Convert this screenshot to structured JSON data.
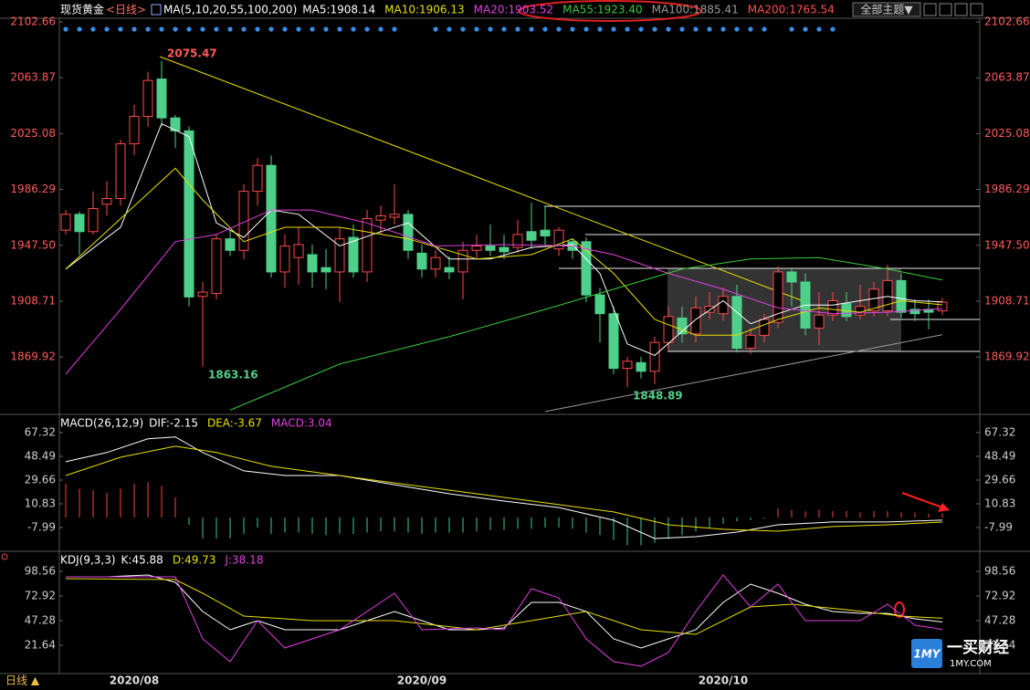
{
  "header": {
    "symbol": "现货黄金",
    "period": "<日线>",
    "theme": "全部主题▼"
  },
  "footer": {
    "period": "日线 ▲",
    "logo": "1MY",
    "brand": "一买财经",
    "brand_url": "1MY.COM"
  },
  "chart_data": [
    {
      "type": "candlestick",
      "title": "MA(5,10,20,55,100,200)",
      "categories": [
        null,
        null,
        null,
        null,
        null,
        "2020/08",
        null,
        null,
        null,
        null,
        null,
        null,
        null,
        null,
        null,
        null,
        null,
        null,
        null,
        null,
        null,
        null,
        null,
        null,
        null,
        null,
        "2020/09",
        null,
        null,
        null,
        null,
        null,
        null,
        null,
        null,
        null,
        null,
        null,
        null,
        null,
        null,
        null,
        null,
        null,
        null,
        null,
        null,
        null,
        "2020/10",
        null,
        null,
        null,
        null,
        null,
        null,
        null,
        null,
        null,
        null,
        null,
        null,
        null,
        null,
        null,
        null
      ],
      "open": [
        1958,
        1969,
        1957,
        1976,
        1980,
        2018,
        2037,
        2063,
        2036,
        2027,
        1912,
        1914,
        1952,
        1944,
        1985,
        2003,
        1929,
        1939,
        1941,
        1932,
        1929,
        1953,
        1929,
        1965,
        1967,
        1969,
        1942,
        1931,
        1932,
        1929,
        1944,
        1947,
        1946,
        1946,
        1957,
        1958,
        1945,
        1950,
        1950,
        1913,
        1900,
        1862,
        1866,
        1860,
        1880,
        1897,
        1886,
        1901,
        1900,
        1912,
        1876,
        1885,
        1894,
        1929,
        1922,
        1890,
        1899,
        1907,
        1899,
        1902,
        1902,
        1923,
        1903,
        1903,
        1902
      ],
      "high": [
        1972,
        1971,
        1985,
        1992,
        2021,
        2045,
        2068,
        2075.47,
        2038,
        2030,
        1922,
        1955,
        1958,
        1990,
        2008,
        2010,
        1955,
        1960,
        1948,
        1945,
        1960,
        1962,
        1972,
        1975,
        1990,
        1972,
        1948,
        1944,
        1940,
        1950,
        1955,
        1962,
        1955,
        1965,
        1977,
        1975,
        1960,
        1952,
        1953,
        1918,
        1905,
        1870,
        1870,
        1884,
        1905,
        1905,
        1912,
        1915,
        1918,
        1920,
        1890,
        1900,
        1933,
        1932,
        1928,
        1915,
        1915,
        1915,
        1920,
        1922,
        1934,
        1928,
        1910,
        1910,
        1911
      ],
      "low": [
        1955,
        1941,
        1955,
        1968,
        1975,
        2010,
        2030,
        2030,
        2015,
        1905,
        1863.16,
        1910,
        1940,
        1938,
        1975,
        1925,
        1918,
        1920,
        1918,
        1917,
        1908,
        1925,
        1922,
        1955,
        1962,
        1938,
        1925,
        1925,
        1924,
        1910,
        1938,
        1940,
        1938,
        1942,
        1945,
        1948,
        1940,
        1938,
        1908,
        1880,
        1858,
        1848.89,
        1855,
        1851,
        1875,
        1880,
        1880,
        1896,
        1895,
        1873,
        1872,
        1880,
        1890,
        1905,
        1885,
        1878,
        1895,
        1895,
        1896,
        1898,
        1898,
        1897,
        1895,
        1889,
        1899
      ],
      "close": [
        1969,
        1957,
        1973,
        1980,
        2018,
        2037,
        2062,
        2036,
        2027,
        1911.6,
        1915,
        1952,
        1944,
        1985,
        2003,
        1929,
        1947,
        1948,
        1929,
        1929,
        1952,
        1929,
        1966,
        1968,
        1969,
        1944,
        1931,
        1939,
        1929,
        1944,
        1947,
        1944,
        1943,
        1955,
        1951,
        1954,
        1958,
        1944,
        1913,
        1900,
        1862,
        1867,
        1860,
        1880,
        1898,
        1886,
        1904,
        1905,
        1912,
        1876,
        1885,
        1896,
        1929,
        1922,
        1890,
        1899,
        1909,
        1898,
        1905,
        1917,
        1923,
        1901,
        1900,
        1901,
        1908
      ],
      "up_color": "#ff4a4a",
      "down_color": "#4fd08a",
      "series": [
        {
          "name": "MA5:1908.14",
          "color": "#ffffff",
          "x": [
            0,
            4,
            7,
            9,
            11,
            13,
            15,
            17,
            20,
            23,
            25,
            28,
            31,
            34,
            37,
            39,
            41,
            43,
            46,
            48,
            50,
            52,
            54,
            56,
            58,
            60,
            62,
            64
          ],
          "values": [
            1931,
            1960,
            2032,
            2023,
            1963,
            1953,
            1972,
            1969,
            1947,
            1957,
            1963,
            1938,
            1938,
            1946,
            1948,
            1928,
            1879,
            1871,
            1896,
            1909,
            1893,
            1900,
            1906,
            1906,
            1909,
            1912,
            1909,
            1908.14
          ]
        },
        {
          "name": "MA10:1906.13",
          "color": "#e8e000",
          "x": [
            0,
            8,
            10,
            13,
            16,
            20,
            25,
            30,
            34,
            37,
            40,
            43,
            46,
            49,
            52,
            55,
            58,
            61,
            64
          ],
          "values": [
            1931,
            2001,
            1979,
            1950,
            1960,
            1960,
            1952,
            1938,
            1941,
            1952,
            1928,
            1896,
            1885,
            1885,
            1896,
            1904,
            1901,
            1909,
            1906.13
          ]
        },
        {
          "name": "MA20:1903.52",
          "color": "#e040e0",
          "x": [
            0,
            4,
            8,
            11,
            15,
            18,
            22,
            27,
            32,
            37,
            40,
            44,
            48,
            52,
            56,
            60,
            64
          ],
          "values": [
            1858,
            1903,
            1950,
            1955,
            1972,
            1972,
            1963,
            1947,
            1948,
            1947,
            1941,
            1928,
            1917,
            1904,
            1900,
            1901,
            1903.52
          ]
        },
        {
          "name": "MA55:1923.40",
          "color": "#3ccc3c",
          "x": [
            12,
            20,
            28,
            35,
            40,
            45,
            50,
            55,
            60,
            64
          ],
          "values": [
            1833,
            1865,
            1884,
            1903,
            1917,
            1931,
            1938,
            1939,
            1931,
            1923.4
          ]
        },
        {
          "name": "MA100:1885.41",
          "color": "#9a9a9a",
          "x": [
            35,
            64
          ],
          "values": [
            1832,
            1885.41
          ]
        },
        {
          "name": "MA200:1765.54",
          "color": "#ff5050"
        }
      ],
      "annotations": [
        "2075.47",
        "1863.16",
        "1848.89"
      ],
      "ylim": [
        1830.7,
        2105.2
      ],
      "yticks": [
        {
          "value": 1869.92,
          "label": "1869.92"
        },
        {
          "value": 1908.71,
          "label": "1908.71"
        },
        {
          "value": 1947.5,
          "label": "1947.50"
        },
        {
          "value": 1986.29,
          "label": "1986.29"
        },
        2025.08,
        2063.87,
        2102.66
      ]
    },
    {
      "type": "macd",
      "title": "MACD(26,12,9)",
      "series": [
        {
          "name": "DIF:-2.15",
          "color": "#ffffff",
          "x": [
            0,
            3,
            6,
            8,
            10,
            13,
            16,
            20,
            24,
            28,
            32,
            36,
            40,
            43,
            46,
            49,
            52,
            56,
            60,
            64
          ],
          "values": [
            44.2,
            51.5,
            62.4,
            63.9,
            51.5,
            37,
            33.3,
            33.3,
            26,
            18.8,
            13,
            7.9,
            -2.2,
            -16.7,
            -15.2,
            -11.6,
            -5.8,
            -3.6,
            -3.6,
            -2.15
          ]
        },
        {
          "name": "DEA:-3.67",
          "color": "#e8e000",
          "x": [
            0,
            4,
            8,
            11,
            15,
            20,
            25,
            30,
            35,
            40,
            44,
            48,
            52,
            56,
            60,
            64
          ],
          "values": [
            33.3,
            47.8,
            56.5,
            51.5,
            40.6,
            33.3,
            26,
            18.8,
            11.6,
            4.4,
            -5.8,
            -9.4,
            -10.9,
            -7.2,
            -5.8,
            -3.67
          ]
        },
        {
          "name": "MACD:3.04",
          "color": "#e040e0",
          "up_color": "#ff4040",
          "down_color": "#40c8a0",
          "values": [
            26.8,
            23,
            21.7,
            19.5,
            23,
            26.8,
            28,
            25,
            16,
            -5.8,
            -16.7,
            -16.7,
            -16.7,
            -13,
            -8,
            -13,
            -12,
            -12,
            -13,
            -14,
            -13,
            -13,
            -12,
            -11,
            -11,
            -12,
            -13,
            -12,
            -12,
            -12,
            -11,
            -10,
            -10,
            -9,
            -9,
            -8,
            -8,
            -9,
            -12,
            -14,
            -18,
            -22,
            -22,
            -20,
            -17,
            -14,
            -11,
            -8,
            -5,
            -3,
            -2,
            -1,
            7,
            6,
            5,
            6,
            5,
            5,
            4,
            5,
            5,
            4,
            4,
            3,
            3.04
          ]
        }
      ],
      "ylim": [
        -23.92,
        80.35
      ],
      "yticks": [
        -7.99,
        10.83,
        29.66,
        48.49,
        67.32
      ]
    },
    {
      "type": "line",
      "title": "KDJ(9,3,3)",
      "series": [
        {
          "name": "K:45.88",
          "color": "#ffffff",
          "x": [
            0,
            3,
            6,
            8,
            10,
            12,
            14,
            16,
            18,
            20,
            22,
            24,
            26,
            28,
            30,
            32,
            34,
            36,
            38,
            40,
            42,
            44,
            46,
            48,
            50,
            52,
            54,
            56,
            58,
            60,
            62,
            64
          ],
          "values": [
            92.9,
            92.9,
            94.8,
            87.2,
            56.8,
            37.8,
            47.3,
            37.8,
            37.8,
            37.8,
            47.3,
            56.8,
            47.3,
            37.8,
            37.8,
            39.7,
            66.3,
            66.3,
            56.8,
            28.3,
            18.8,
            28.3,
            37.8,
            66.3,
            85.3,
            75.8,
            64.4,
            56.8,
            54.9,
            54.9,
            49.2,
            45.88
          ]
        },
        {
          "name": "D:49.73",
          "color": "#e8e000",
          "x": [
            0,
            8,
            10,
            13,
            18,
            24,
            30,
            34,
            38,
            42,
            46,
            50,
            53,
            57,
            61,
            64
          ],
          "values": [
            91,
            90,
            75.8,
            52,
            47.3,
            47.3,
            37.8,
            47.3,
            56.8,
            37.8,
            33,
            61.5,
            64.4,
            58.7,
            52,
            49.73
          ]
        },
        {
          "name": "J:38.18",
          "color": "#e040e0",
          "x": [
            0,
            8,
            10,
            12,
            14,
            16,
            20,
            24,
            26,
            30,
            32,
            34,
            36,
            38,
            40,
            42,
            44,
            46,
            48,
            50,
            52,
            54,
            56,
            58,
            60,
            62,
            64
          ],
          "values": [
            92.9,
            92.9,
            28.3,
            4.6,
            47.3,
            18.8,
            37.8,
            75.8,
            37.8,
            39.7,
            37.8,
            80.5,
            71,
            28.3,
            4.6,
            -0.2,
            14,
            56.8,
            94.8,
            61.5,
            85.3,
            47.3,
            47.3,
            47.3,
            64.4,
            42.5,
            38.18
          ]
        }
      ],
      "ylim": [
        -7.8,
        117.55
      ],
      "yticks": [
        21.64,
        47.28,
        72.92,
        98.56
      ]
    }
  ]
}
